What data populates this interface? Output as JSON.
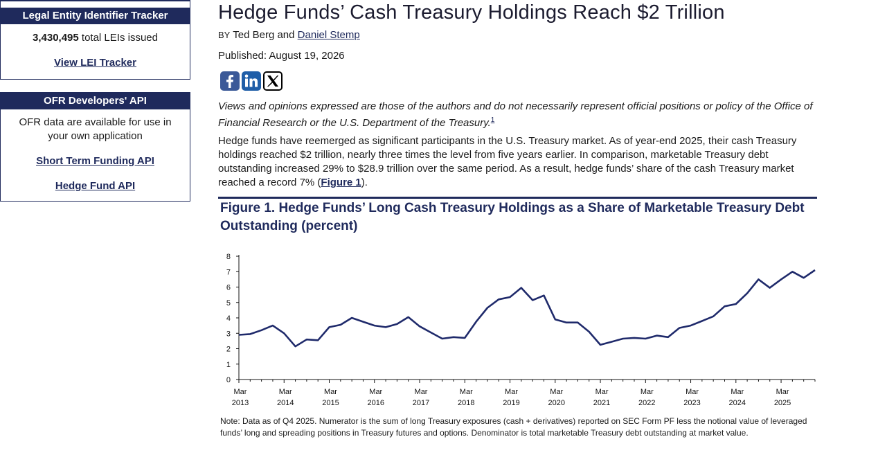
{
  "sidebar": {
    "lei": {
      "heading": "Legal Entity Identifier Tracker",
      "count": "3,430,495",
      "count_suffix": " total LEIs issued",
      "link": "View LEI Tracker"
    },
    "api": {
      "heading": "OFR Developers' API",
      "text": "OFR data are available for use in your own application",
      "link1": "Short Term Funding API",
      "link2": "Hedge Fund API"
    }
  },
  "article": {
    "title": "Hedge Funds’ Cash Treasury Holdings Reach $2 Trillion",
    "by": "BY",
    "author1": "Ted Berg",
    "and": "and",
    "author2": "Daniel Stemp",
    "published": "Published: August 19, 2026",
    "social": [
      "facebook-icon",
      "linkedin-icon",
      "x-icon"
    ],
    "disclaimer": "Views and opinions expressed are those of the authors and do not necessarily represent official positions or policy of the Office of Financial Research or the U.S. Department of the Treasury.",
    "footnote": "1",
    "para_before": "Hedge funds have reemerged as significant participants in the U.S. Treasury market. As of year-end 2025, their cash Treasury holdings reached $2 trillion, nearly three times the level from five years earlier. In comparison, marketable Treasury debt outstanding increased 29% to $28.9 trillion over the same period. As a result, hedge funds’ share of the cash Treasury market reached a record 7% (",
    "para_link": "Figure 1",
    "para_after": ").",
    "figure_title": "Figure 1. Hedge Funds’ Long Cash Treasury Holdings as a Share of Marketable Treasury Debt Outstanding (percent)",
    "note": "Note: Data as of Q4 2025. Numerator is the sum of long Treasury exposures (cash + derivatives) reported on SEC Form PF less the notional value of leveraged funds’ long and spreading positions in Treasury futures and options. Denominator is total marketable Treasury debt outstanding at market value."
  },
  "chart_data": {
    "type": "line",
    "title": "Figure 1. Hedge Funds’ Long Cash Treasury Holdings as a Share of Marketable Treasury Debt Outstanding (percent)",
    "ylim": [
      0,
      8
    ],
    "yticks": [
      0,
      1,
      2,
      3,
      4,
      5,
      6,
      7,
      8
    ],
    "xtick_labels": [
      [
        "Mar",
        "2013"
      ],
      [
        "Mar",
        "2014"
      ],
      [
        "Mar",
        "2015"
      ],
      [
        "Mar",
        "2016"
      ],
      [
        "Mar",
        "2017"
      ],
      [
        "Mar",
        "2018"
      ],
      [
        "Mar",
        "2019"
      ],
      [
        "Mar",
        "2020"
      ],
      [
        "Mar",
        "2021"
      ],
      [
        "Mar",
        "2022"
      ],
      [
        "Mar",
        "2023"
      ],
      [
        "Mar",
        "2024"
      ],
      [
        "Mar",
        "2025"
      ]
    ],
    "x_start": "2013-Q1",
    "x_end": "2025-Q4",
    "series": [
      {
        "color": "#1f2a6b",
        "values": [
          2.9,
          2.95,
          3.2,
          3.5,
          3.0,
          2.15,
          2.6,
          2.55,
          3.4,
          3.55,
          4.0,
          3.75,
          3.5,
          3.4,
          3.6,
          4.05,
          3.45,
          3.05,
          2.65,
          2.75,
          2.7,
          3.75,
          4.65,
          5.2,
          5.35,
          5.95,
          5.15,
          5.45,
          3.9,
          3.7,
          3.7,
          3.1,
          2.25,
          2.45,
          2.65,
          2.7,
          2.65,
          2.85,
          2.75,
          3.35,
          3.5,
          3.8,
          4.1,
          4.75,
          4.9,
          5.6,
          6.5,
          5.95,
          6.5,
          7.0,
          6.6,
          7.1
        ]
      }
    ]
  }
}
